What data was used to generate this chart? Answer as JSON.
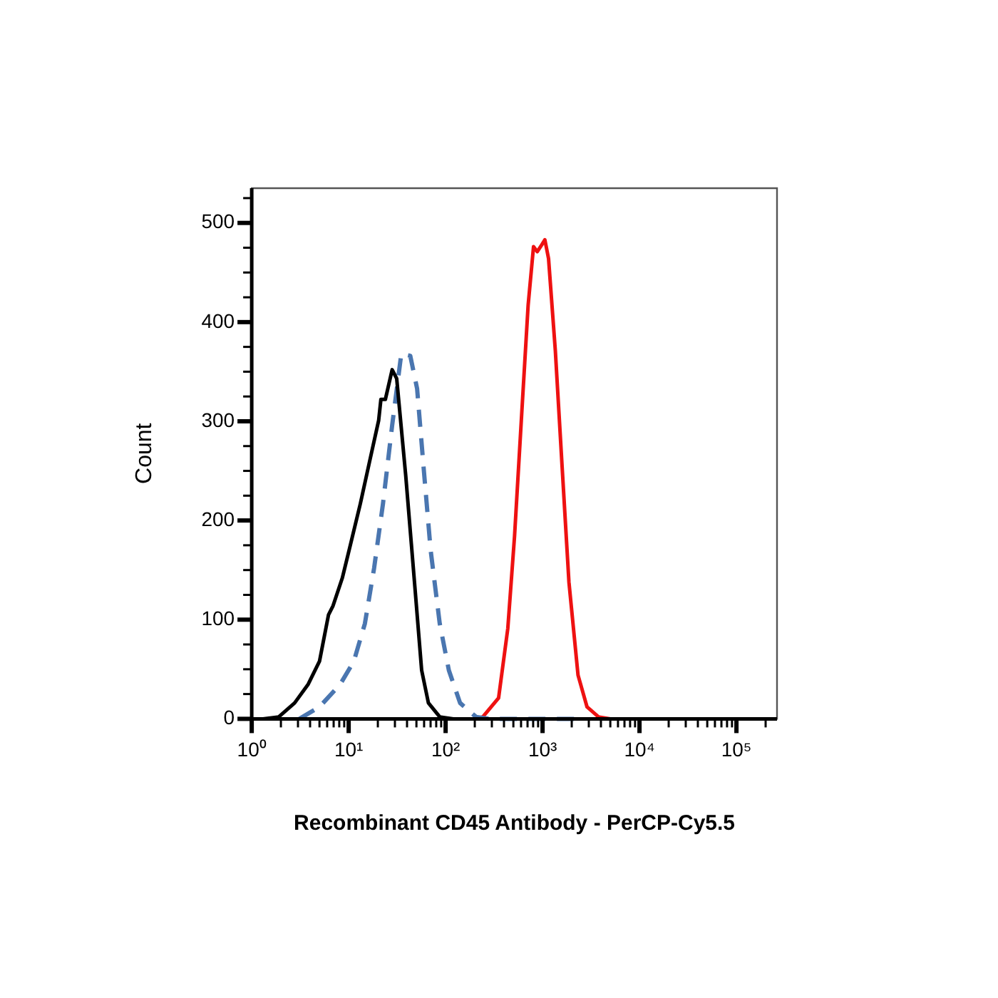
{
  "chart_data": {
    "type": "line",
    "xlabel": "Recombinant CD45 Antibody - PerCP-Cy5.5",
    "ylabel": "Count",
    "log": "x",
    "grid": false,
    "legend": false,
    "marker": "none",
    "xlim": [
      1,
      262144
    ],
    "xticks": [
      {
        "value": 1,
        "label": "10⁰"
      },
      {
        "value": 2,
        "label": null
      },
      {
        "value": 3,
        "label": null
      },
      {
        "value": 4,
        "label": null
      },
      {
        "value": 5,
        "label": null
      },
      {
        "value": 6,
        "label": null
      },
      {
        "value": 7,
        "label": null
      },
      {
        "value": 8,
        "label": null
      },
      {
        "value": 9,
        "label": null
      },
      {
        "value": 10,
        "label": "10¹"
      },
      {
        "value": 20,
        "label": null
      },
      {
        "value": 30,
        "label": null
      },
      {
        "value": 40,
        "label": null
      },
      {
        "value": 50,
        "label": null
      },
      {
        "value": 60,
        "label": null
      },
      {
        "value": 70,
        "label": null
      },
      {
        "value": 80,
        "label": null
      },
      {
        "value": 90,
        "label": null
      },
      {
        "value": 100,
        "label": "10²"
      },
      {
        "value": 200,
        "label": null
      },
      {
        "value": 300,
        "label": null
      },
      {
        "value": 400,
        "label": null
      },
      {
        "value": 500,
        "label": null
      },
      {
        "value": 600,
        "label": null
      },
      {
        "value": 700,
        "label": null
      },
      {
        "value": 800,
        "label": null
      },
      {
        "value": 900,
        "label": null
      },
      {
        "value": 1000,
        "label": "10³"
      },
      {
        "value": 2000,
        "label": null
      },
      {
        "value": 3000,
        "label": null
      },
      {
        "value": 4000,
        "label": null
      },
      {
        "value": 5000,
        "label": null
      },
      {
        "value": 6000,
        "label": null
      },
      {
        "value": 7000,
        "label": null
      },
      {
        "value": 8000,
        "label": null
      },
      {
        "value": 9000,
        "label": null
      },
      {
        "value": 10000,
        "label": "10⁴"
      },
      {
        "value": 20000,
        "label": null
      },
      {
        "value": 30000,
        "label": null
      },
      {
        "value": 40000,
        "label": null
      },
      {
        "value": 50000,
        "label": null
      },
      {
        "value": 60000,
        "label": null
      },
      {
        "value": 70000,
        "label": null
      },
      {
        "value": 80000,
        "label": null
      },
      {
        "value": 90000,
        "label": null
      },
      {
        "value": 100000,
        "label": "10⁵"
      },
      {
        "value": 200000,
        "label": null
      }
    ],
    "ylim": [
      0,
      535
    ],
    "yticks": [
      0,
      {
        "value": 25,
        "label": null
      },
      {
        "value": 50,
        "label": null
      },
      {
        "value": 75,
        "label": null
      },
      100,
      {
        "value": 125,
        "label": null
      },
      {
        "value": 150,
        "label": null
      },
      {
        "value": 175,
        "label": null
      },
      200,
      {
        "value": 225,
        "label": null
      },
      {
        "value": 250,
        "label": null
      },
      {
        "value": 275,
        "label": null
      },
      300,
      {
        "value": 325,
        "label": null
      },
      {
        "value": 350,
        "label": null
      },
      {
        "value": 375,
        "label": null
      },
      400,
      {
        "value": 425,
        "label": null
      },
      {
        "value": 450,
        "label": null
      },
      {
        "value": 475,
        "label": null
      },
      500,
      {
        "value": 525,
        "label": null
      }
    ],
    "series": [
      {
        "color": "#000000",
        "line_style": "solid",
        "x": [
          1.31,
          1.9,
          2.77,
          3.83,
          5.0,
          6.2,
          6.9,
          8.6,
          10.7,
          13.2,
          16.4,
          20.4,
          21.5,
          23.9,
          28.1,
          31.3,
          38.8,
          48.2,
          56.6,
          66.5,
          87,
          120
        ],
        "values": [
          0,
          2,
          16,
          35,
          58,
          105,
          114,
          142,
          180,
          217,
          259,
          301,
          322,
          322,
          352,
          343,
          245,
          133,
          49,
          16,
          2,
          0
        ]
      },
      {
        "color": "#4a76b0",
        "line_style": "dashed",
        "x": [
          3.1,
          5.0,
          8.2,
          11.3,
          14.7,
          18.3,
          22.6,
          28.1,
          34.9,
          43.2,
          50.8,
          59.7,
          70.1,
          87,
          108,
          141,
          206,
          282,
          2500
        ],
        "values": [
          0,
          12,
          35,
          58,
          96,
          152,
          217,
          296,
          368,
          366,
          333,
          250,
          170,
          96,
          49,
          16,
          2,
          0,
          0
        ]
      },
      {
        "color": "#ee1111",
        "line_style": "solid",
        "x": [
          1,
          200,
          242,
          352,
          438,
          514,
          604,
          710,
          807,
          881,
          982,
          1057,
          1153,
          1355,
          1592,
          1871,
          2323,
          2877,
          3776,
          5000,
          262144
        ],
        "values": [
          0,
          0,
          2,
          21,
          91,
          184,
          301,
          417,
          476,
          471,
          478,
          483,
          464,
          371,
          254,
          138,
          44,
          12,
          2,
          0,
          0
        ]
      }
    ]
  }
}
